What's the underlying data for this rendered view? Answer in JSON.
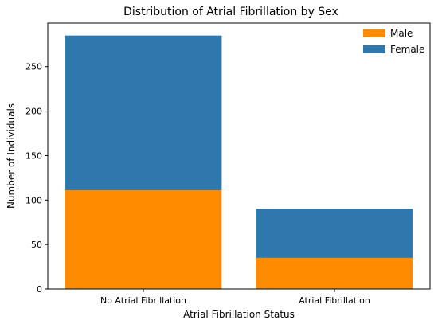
{
  "chart_data": {
    "type": "bar",
    "stacked": true,
    "title": "Distribution of Atrial Fibrillation by Sex",
    "xlabel": "Atrial Fibrillation Status",
    "ylabel": "Number of Individuals",
    "categories": [
      "No Atrial Fibrillation",
      "Atrial Fibrillation"
    ],
    "series": [
      {
        "name": "Male",
        "values": [
          111,
          35
        ],
        "color": "#ff8c00"
      },
      {
        "name": "Female",
        "values": [
          174,
          55
        ],
        "color": "#2e78ad"
      }
    ],
    "ylim": [
      0,
      299
    ],
    "yticks": [
      0,
      50,
      100,
      150,
      200,
      250
    ],
    "grid": false,
    "legend": "top-right"
  }
}
